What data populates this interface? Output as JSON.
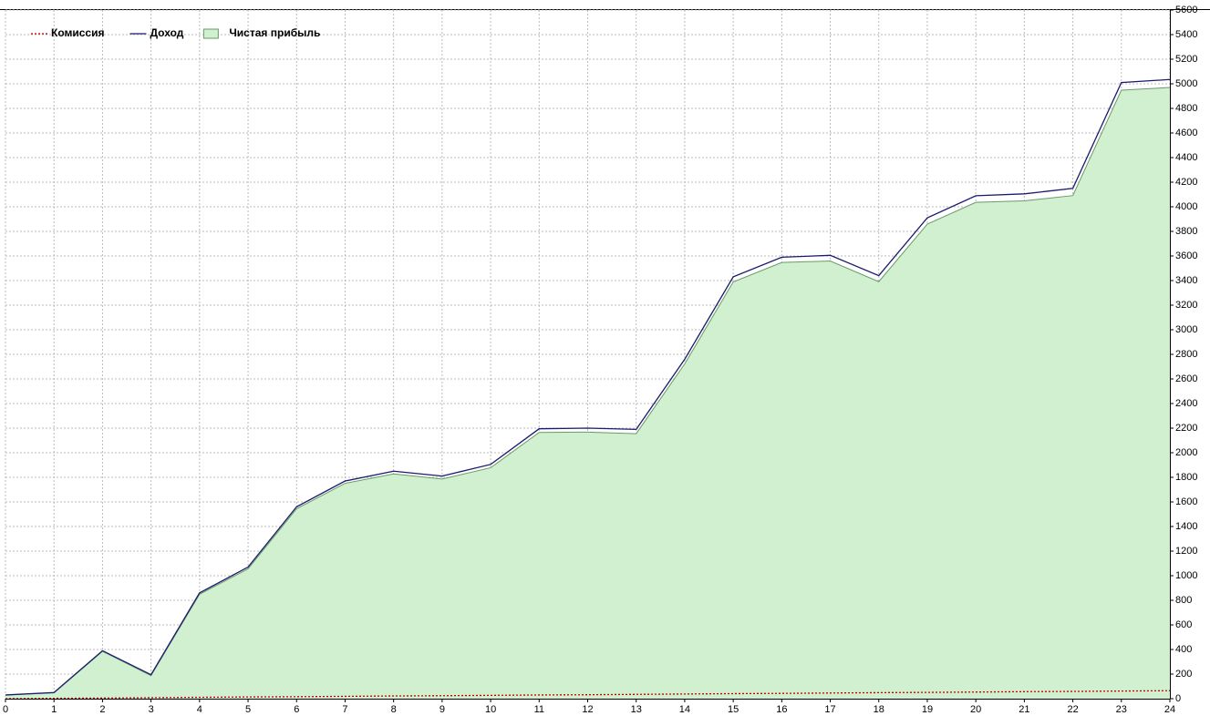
{
  "chart_data": {
    "type": "line",
    "x": [
      0,
      1,
      2,
      3,
      4,
      5,
      6,
      7,
      8,
      9,
      10,
      11,
      12,
      13,
      14,
      15,
      16,
      17,
      18,
      19,
      20,
      21,
      22,
      23,
      24
    ],
    "series": [
      {
        "name": "Комиссия",
        "color": "#c00000",
        "style": "dotted",
        "kind": "line",
        "values": [
          0,
          3,
          5,
          8,
          11,
          14,
          16,
          19,
          22,
          24,
          27,
          30,
          32,
          35,
          38,
          41,
          43,
          46,
          49,
          51,
          54,
          57,
          59,
          62,
          65
        ]
      },
      {
        "name": "Доход",
        "color": "#1a1a6e",
        "style": "solid",
        "kind": "line",
        "values": [
          30,
          50,
          390,
          195,
          860,
          1070,
          1560,
          1770,
          1850,
          1810,
          1905,
          2195,
          2200,
          2190,
          2760,
          3430,
          3590,
          3605,
          3440,
          3910,
          4090,
          4105,
          4150,
          5010,
          5035
        ]
      },
      {
        "name": "Чистая прибыль",
        "color": "#d0f0d0",
        "line_color": "#6a9a6a",
        "style": "solid",
        "kind": "area",
        "values": [
          30,
          47,
          385,
          187,
          849,
          1056,
          1544,
          1751,
          1828,
          1786,
          1878,
          2165,
          2168,
          2155,
          2722,
          3389,
          3547,
          3559,
          3391,
          3859,
          4036,
          4048,
          4091,
          4948,
          4970
        ]
      }
    ],
    "xlim": [
      0,
      24
    ],
    "xticks": [
      0,
      1,
      2,
      3,
      4,
      5,
      6,
      7,
      8,
      9,
      10,
      11,
      12,
      13,
      14,
      15,
      16,
      17,
      18,
      19,
      20,
      21,
      22,
      23,
      24
    ],
    "ylim": [
      0,
      5600
    ],
    "yticks": [
      0,
      200,
      400,
      600,
      800,
      1000,
      1200,
      1400,
      1600,
      1800,
      2000,
      2200,
      2400,
      2600,
      2800,
      3000,
      3200,
      3400,
      3600,
      3800,
      4000,
      4200,
      4400,
      4600,
      4800,
      5000,
      5200,
      5400,
      5600
    ],
    "grid": true,
    "legend": "top-left",
    "y_axis_side": "right"
  }
}
